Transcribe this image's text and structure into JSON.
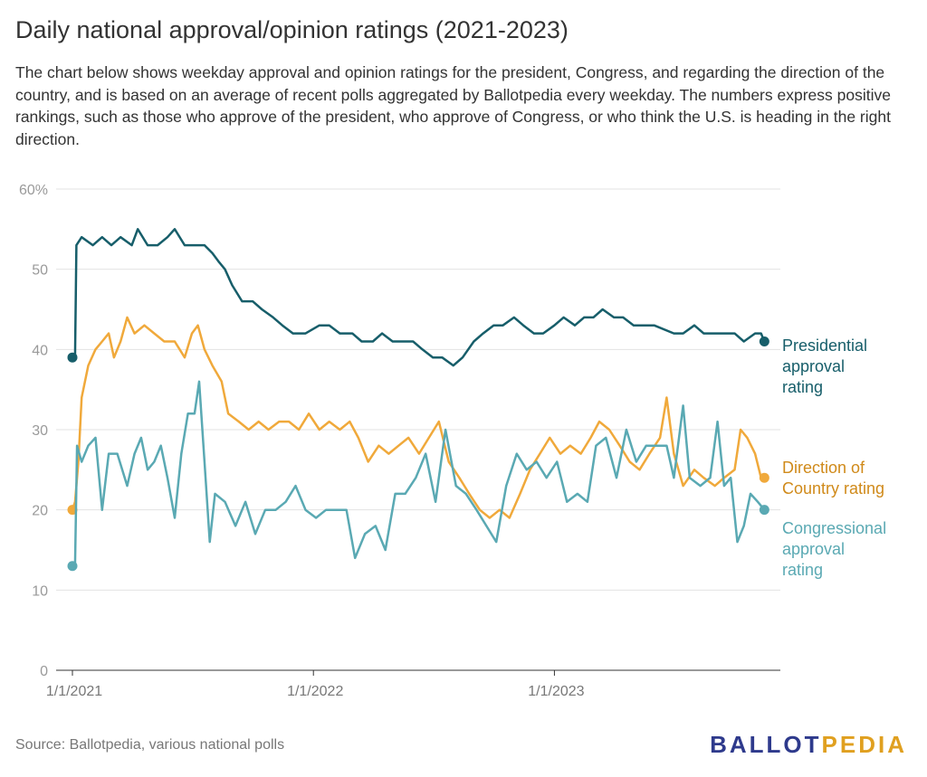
{
  "header": {
    "title": "Daily national approval/opinion ratings (2021-2023)",
    "subtitle": "The chart below shows weekday approval and opinion ratings for the president, Congress, and regarding the direction of the country, and is based on an average of recent polls aggregated by Ballotpedia every weekday. The numbers express positive rankings, such as those who approve of the president, who approve of Congress, or who think the U.S. is heading in the right direction."
  },
  "footer": {
    "source": "Source: Ballotpedia, various national polls",
    "logo_part1": "BALLOT",
    "logo_part2": "PEDIA"
  },
  "colors": {
    "presidential": "#175e6a",
    "direction": "#f0a93b",
    "congressional": "#5aa9b3",
    "direction_label": "#d08a1a"
  },
  "chart_data": {
    "type": "line",
    "title": "Daily national approval/opinion ratings (2021-2023)",
    "ylim": [
      0,
      60
    ],
    "y_ticks": [
      "0",
      "10",
      "20",
      "30",
      "40",
      "50",
      "60%"
    ],
    "y_tick_values": [
      0,
      10,
      20,
      30,
      40,
      50,
      60
    ],
    "xlim": [
      "2021-01-01",
      "2023-11-20"
    ],
    "x_ticks": [
      "1/1/2021",
      "1/1/2022",
      "1/1/2023"
    ],
    "x_tick_values": [
      "2021-01-01",
      "2022-01-01",
      "2023-01-01"
    ],
    "grid": true,
    "series": [
      {
        "name": "Presidential approval rating",
        "label_lines": [
          "Presidential",
          "approval",
          "rating"
        ],
        "color_key": "presidential",
        "points": [
          [
            "2021-01-01",
            39
          ],
          [
            "2021-01-05",
            39
          ],
          [
            "2021-01-07",
            53
          ],
          [
            "2021-01-15",
            54
          ],
          [
            "2021-02-01",
            53
          ],
          [
            "2021-02-15",
            54
          ],
          [
            "2021-03-01",
            53
          ],
          [
            "2021-03-15",
            54
          ],
          [
            "2021-04-01",
            53
          ],
          [
            "2021-04-10",
            55
          ],
          [
            "2021-04-25",
            53
          ],
          [
            "2021-05-10",
            53
          ],
          [
            "2021-05-25",
            54
          ],
          [
            "2021-06-05",
            55
          ],
          [
            "2021-06-20",
            53
          ],
          [
            "2021-07-05",
            53
          ],
          [
            "2021-07-20",
            53
          ],
          [
            "2021-08-01",
            52
          ],
          [
            "2021-08-10",
            51
          ],
          [
            "2021-08-20",
            50
          ],
          [
            "2021-08-31",
            48
          ],
          [
            "2021-09-15",
            46
          ],
          [
            "2021-10-01",
            46
          ],
          [
            "2021-10-15",
            45
          ],
          [
            "2021-11-01",
            44
          ],
          [
            "2021-11-15",
            43
          ],
          [
            "2021-12-01",
            42
          ],
          [
            "2021-12-20",
            42
          ],
          [
            "2022-01-10",
            43
          ],
          [
            "2022-01-25",
            43
          ],
          [
            "2022-02-10",
            42
          ],
          [
            "2022-03-01",
            42
          ],
          [
            "2022-03-15",
            41
          ],
          [
            "2022-04-01",
            41
          ],
          [
            "2022-04-15",
            42
          ],
          [
            "2022-05-01",
            41
          ],
          [
            "2022-05-15",
            41
          ],
          [
            "2022-06-01",
            41
          ],
          [
            "2022-06-15",
            40
          ],
          [
            "2022-07-01",
            39
          ],
          [
            "2022-07-15",
            39
          ],
          [
            "2022-08-01",
            38
          ],
          [
            "2022-08-15",
            39
          ],
          [
            "2022-09-01",
            41
          ],
          [
            "2022-09-15",
            42
          ],
          [
            "2022-10-01",
            43
          ],
          [
            "2022-10-15",
            43
          ],
          [
            "2022-11-01",
            44
          ],
          [
            "2022-11-15",
            43
          ],
          [
            "2022-12-01",
            42
          ],
          [
            "2022-12-15",
            42
          ],
          [
            "2023-01-01",
            43
          ],
          [
            "2023-01-15",
            44
          ],
          [
            "2023-02-01",
            43
          ],
          [
            "2023-02-15",
            44
          ],
          [
            "2023-03-01",
            44
          ],
          [
            "2023-03-15",
            45
          ],
          [
            "2023-04-01",
            44
          ],
          [
            "2023-04-15",
            44
          ],
          [
            "2023-05-01",
            43
          ],
          [
            "2023-06-01",
            43
          ],
          [
            "2023-07-01",
            42
          ],
          [
            "2023-07-15",
            42
          ],
          [
            "2023-08-01",
            43
          ],
          [
            "2023-08-15",
            42
          ],
          [
            "2023-09-01",
            42
          ],
          [
            "2023-09-15",
            42
          ],
          [
            "2023-10-01",
            42
          ],
          [
            "2023-10-15",
            41
          ],
          [
            "2023-11-01",
            42
          ],
          [
            "2023-11-10",
            42
          ],
          [
            "2023-11-15",
            41
          ]
        ]
      },
      {
        "name": "Direction of Country rating",
        "label_lines": [
          "Direction of",
          "Country rating"
        ],
        "color_key": "direction",
        "points": [
          [
            "2021-01-01",
            20
          ],
          [
            "2021-01-05",
            21
          ],
          [
            "2021-01-10",
            26
          ],
          [
            "2021-01-15",
            34
          ],
          [
            "2021-01-25",
            38
          ],
          [
            "2021-02-05",
            40
          ],
          [
            "2021-02-15",
            41
          ],
          [
            "2021-02-25",
            42
          ],
          [
            "2021-03-05",
            39
          ],
          [
            "2021-03-15",
            41
          ],
          [
            "2021-03-25",
            44
          ],
          [
            "2021-04-05",
            42
          ],
          [
            "2021-04-20",
            43
          ],
          [
            "2021-05-05",
            42
          ],
          [
            "2021-05-20",
            41
          ],
          [
            "2021-06-05",
            41
          ],
          [
            "2021-06-20",
            39
          ],
          [
            "2021-07-01",
            42
          ],
          [
            "2021-07-10",
            43
          ],
          [
            "2021-07-20",
            40
          ],
          [
            "2021-08-01",
            38
          ],
          [
            "2021-08-15",
            36
          ],
          [
            "2021-08-25",
            32
          ],
          [
            "2021-09-10",
            31
          ],
          [
            "2021-09-25",
            30
          ],
          [
            "2021-10-10",
            31
          ],
          [
            "2021-10-25",
            30
          ],
          [
            "2021-11-10",
            31
          ],
          [
            "2021-11-25",
            31
          ],
          [
            "2021-12-10",
            30
          ],
          [
            "2021-12-25",
            32
          ],
          [
            "2022-01-10",
            30
          ],
          [
            "2022-01-25",
            31
          ],
          [
            "2022-02-10",
            30
          ],
          [
            "2022-02-25",
            31
          ],
          [
            "2022-03-10",
            29
          ],
          [
            "2022-03-25",
            26
          ],
          [
            "2022-04-10",
            28
          ],
          [
            "2022-04-25",
            27
          ],
          [
            "2022-05-10",
            28
          ],
          [
            "2022-05-25",
            29
          ],
          [
            "2022-06-10",
            27
          ],
          [
            "2022-06-25",
            29
          ],
          [
            "2022-07-10",
            31
          ],
          [
            "2022-07-25",
            26
          ],
          [
            "2022-08-10",
            24
          ],
          [
            "2022-08-25",
            22
          ],
          [
            "2022-09-10",
            20
          ],
          [
            "2022-09-25",
            19
          ],
          [
            "2022-10-10",
            20
          ],
          [
            "2022-10-25",
            19
          ],
          [
            "2022-11-10",
            22
          ],
          [
            "2022-11-25",
            25
          ],
          [
            "2022-12-10",
            27
          ],
          [
            "2022-12-25",
            29
          ],
          [
            "2023-01-10",
            27
          ],
          [
            "2023-01-25",
            28
          ],
          [
            "2023-02-10",
            27
          ],
          [
            "2023-02-25",
            29
          ],
          [
            "2023-03-10",
            31
          ],
          [
            "2023-03-25",
            30
          ],
          [
            "2023-04-10",
            28
          ],
          [
            "2023-04-25",
            26
          ],
          [
            "2023-05-10",
            25
          ],
          [
            "2023-05-25",
            27
          ],
          [
            "2023-06-10",
            29
          ],
          [
            "2023-06-20",
            34
          ],
          [
            "2023-07-01",
            27
          ],
          [
            "2023-07-15",
            23
          ],
          [
            "2023-08-01",
            25
          ],
          [
            "2023-08-15",
            24
          ],
          [
            "2023-09-01",
            23
          ],
          [
            "2023-09-15",
            24
          ],
          [
            "2023-10-01",
            25
          ],
          [
            "2023-10-10",
            30
          ],
          [
            "2023-10-20",
            29
          ],
          [
            "2023-11-01",
            27
          ],
          [
            "2023-11-10",
            24
          ],
          [
            "2023-11-15",
            24
          ]
        ]
      },
      {
        "name": "Congressional approval rating",
        "label_lines": [
          "Congressional",
          "approval",
          "rating"
        ],
        "color_key": "congressional",
        "points": [
          [
            "2021-01-01",
            13
          ],
          [
            "2021-01-05",
            13
          ],
          [
            "2021-01-08",
            28
          ],
          [
            "2021-01-15",
            26
          ],
          [
            "2021-01-25",
            28
          ],
          [
            "2021-02-05",
            29
          ],
          [
            "2021-02-15",
            20
          ],
          [
            "2021-02-25",
            27
          ],
          [
            "2021-03-10",
            27
          ],
          [
            "2021-03-25",
            23
          ],
          [
            "2021-04-05",
            27
          ],
          [
            "2021-04-15",
            29
          ],
          [
            "2021-04-25",
            25
          ],
          [
            "2021-05-05",
            26
          ],
          [
            "2021-05-15",
            28
          ],
          [
            "2021-05-25",
            24
          ],
          [
            "2021-06-05",
            19
          ],
          [
            "2021-06-15",
            27
          ],
          [
            "2021-06-25",
            32
          ],
          [
            "2021-07-05",
            32
          ],
          [
            "2021-07-12",
            36
          ],
          [
            "2021-07-20",
            26
          ],
          [
            "2021-07-28",
            16
          ],
          [
            "2021-08-05",
            22
          ],
          [
            "2021-08-20",
            21
          ],
          [
            "2021-09-05",
            18
          ],
          [
            "2021-09-20",
            21
          ],
          [
            "2021-10-05",
            17
          ],
          [
            "2021-10-20",
            20
          ],
          [
            "2021-11-05",
            20
          ],
          [
            "2021-11-20",
            21
          ],
          [
            "2021-12-05",
            23
          ],
          [
            "2021-12-20",
            20
          ],
          [
            "2022-01-05",
            19
          ],
          [
            "2022-01-20",
            20
          ],
          [
            "2022-02-05",
            20
          ],
          [
            "2022-02-20",
            20
          ],
          [
            "2022-03-05",
            14
          ],
          [
            "2022-03-20",
            17
          ],
          [
            "2022-04-05",
            18
          ],
          [
            "2022-04-20",
            15
          ],
          [
            "2022-05-05",
            22
          ],
          [
            "2022-05-20",
            22
          ],
          [
            "2022-06-05",
            24
          ],
          [
            "2022-06-20",
            27
          ],
          [
            "2022-07-05",
            21
          ],
          [
            "2022-07-20",
            30
          ],
          [
            "2022-08-05",
            23
          ],
          [
            "2022-08-20",
            22
          ],
          [
            "2022-09-05",
            20
          ],
          [
            "2022-09-20",
            18
          ],
          [
            "2022-10-05",
            16
          ],
          [
            "2022-10-20",
            23
          ],
          [
            "2022-11-05",
            27
          ],
          [
            "2022-11-20",
            25
          ],
          [
            "2022-12-05",
            26
          ],
          [
            "2022-12-20",
            24
          ],
          [
            "2023-01-05",
            26
          ],
          [
            "2023-01-20",
            21
          ],
          [
            "2023-02-05",
            22
          ],
          [
            "2023-02-20",
            21
          ],
          [
            "2023-03-05",
            28
          ],
          [
            "2023-03-20",
            29
          ],
          [
            "2023-04-05",
            24
          ],
          [
            "2023-04-20",
            30
          ],
          [
            "2023-05-05",
            26
          ],
          [
            "2023-05-20",
            28
          ],
          [
            "2023-06-05",
            28
          ],
          [
            "2023-06-20",
            28
          ],
          [
            "2023-07-01",
            24
          ],
          [
            "2023-07-15",
            33
          ],
          [
            "2023-07-25",
            24
          ],
          [
            "2023-08-10",
            23
          ],
          [
            "2023-08-25",
            24
          ],
          [
            "2023-09-05",
            31
          ],
          [
            "2023-09-15",
            23
          ],
          [
            "2023-09-25",
            24
          ],
          [
            "2023-10-05",
            16
          ],
          [
            "2023-10-15",
            18
          ],
          [
            "2023-10-25",
            22
          ],
          [
            "2023-11-05",
            21
          ],
          [
            "2023-11-15",
            20
          ]
        ]
      }
    ]
  }
}
